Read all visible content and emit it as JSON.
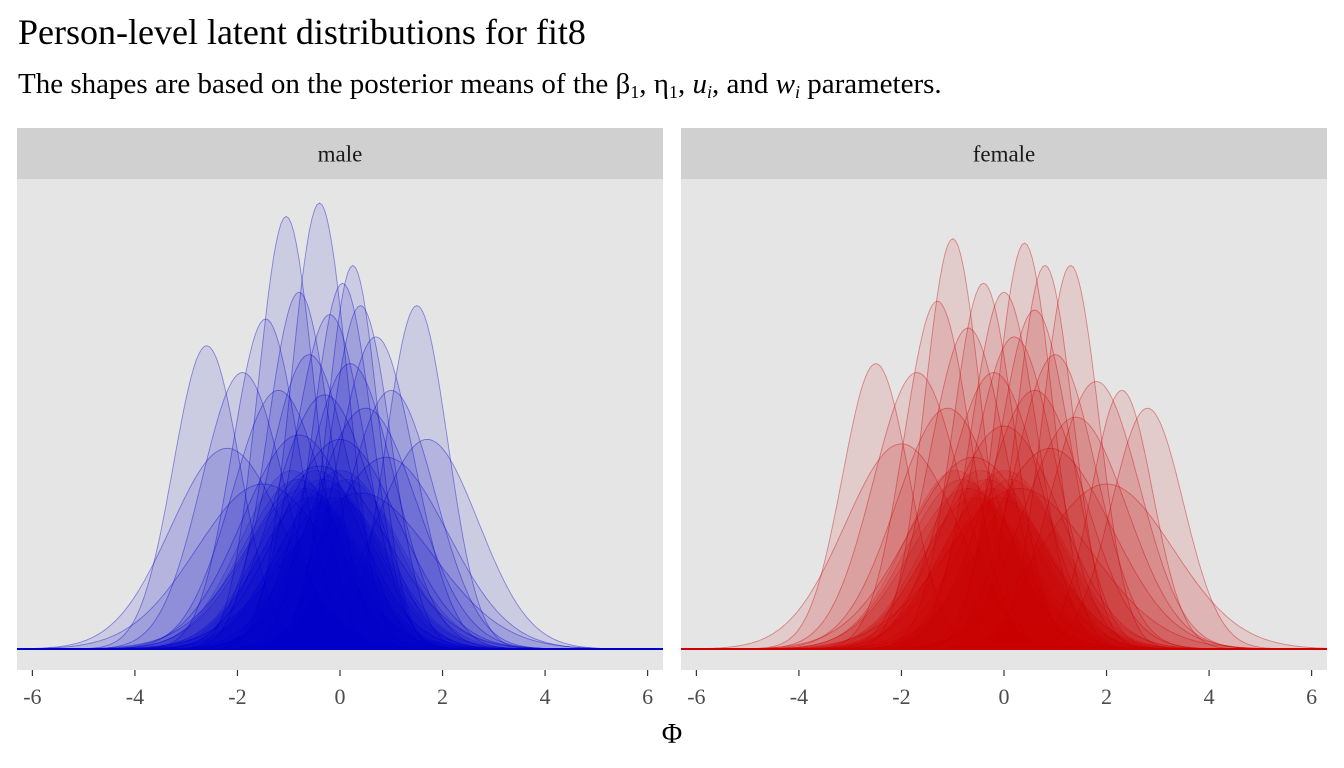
{
  "title": "Person-level latent distributions for fit8",
  "subtitle": {
    "prefix": "The shapes are based on the posterior means of the ",
    "beta": "β",
    "beta_sub": "1",
    "sep1": ", ",
    "eta": "η",
    "eta_sub": "1",
    "sep2": ", ",
    "u": "u",
    "u_sub": "i",
    "sep3": ", and ",
    "w": "w",
    "w_sub": "i",
    "suffix": " parameters."
  },
  "chart_data": {
    "type": "area",
    "xlabel": "Φ",
    "ylabel": "",
    "xlim": [
      -6.3,
      6.3
    ],
    "ylim": [
      0,
      1
    ],
    "x_ticks": [
      "-6",
      "-4",
      "-2",
      "0",
      "2",
      "4",
      "6"
    ],
    "x_tick_values": [
      -6,
      -4,
      -2,
      0,
      2,
      4,
      6
    ],
    "grid": false,
    "panel_background": "#e5e5e5",
    "strip_background": "#d0d0d0",
    "panels": [
      {
        "label": "male",
        "color": "#0000cc",
        "curves": [
          {
            "mean": -0.4,
            "sd": 0.55,
            "peak": 1.0
          },
          {
            "mean": -1.05,
            "sd": 0.55,
            "peak": 0.97
          },
          {
            "mean": 0.25,
            "sd": 0.5,
            "peak": 0.86
          },
          {
            "mean": -0.8,
            "sd": 0.62,
            "peak": 0.8
          },
          {
            "mean": 0.05,
            "sd": 0.58,
            "peak": 0.82
          },
          {
            "mean": 0.4,
            "sd": 0.6,
            "peak": 0.77
          },
          {
            "mean": 1.5,
            "sd": 0.6,
            "peak": 0.77
          },
          {
            "mean": -1.45,
            "sd": 0.65,
            "peak": 0.74
          },
          {
            "mean": -2.6,
            "sd": 0.65,
            "peak": 0.68
          },
          {
            "mean": -0.2,
            "sd": 0.7,
            "peak": 0.75
          },
          {
            "mean": 0.7,
            "sd": 0.75,
            "peak": 0.7
          },
          {
            "mean": -1.9,
            "sd": 0.8,
            "peak": 0.62
          },
          {
            "mean": -0.6,
            "sd": 0.8,
            "peak": 0.66
          },
          {
            "mean": 0.2,
            "sd": 0.85,
            "peak": 0.64
          },
          {
            "mean": 1.0,
            "sd": 0.85,
            "peak": 0.58
          },
          {
            "mean": -1.2,
            "sd": 0.9,
            "peak": 0.58
          },
          {
            "mean": -0.3,
            "sd": 0.95,
            "peak": 0.57
          },
          {
            "mean": 0.5,
            "sd": 1.0,
            "peak": 0.54
          },
          {
            "mean": 1.7,
            "sd": 1.0,
            "peak": 0.47
          },
          {
            "mean": -2.2,
            "sd": 1.1,
            "peak": 0.45
          },
          {
            "mean": -0.8,
            "sd": 1.1,
            "peak": 0.48
          },
          {
            "mean": 0.0,
            "sd": 1.15,
            "peak": 0.47
          },
          {
            "mean": 0.9,
            "sd": 1.2,
            "peak": 0.43
          },
          {
            "mean": -0.4,
            "sd": 1.3,
            "peak": 0.41
          },
          {
            "mean": -1.5,
            "sd": 1.3,
            "peak": 0.37
          },
          {
            "mean": 0.4,
            "sd": 1.4,
            "peak": 0.35
          }
        ]
      },
      {
        "label": "female",
        "color": "#cc0000",
        "curves": [
          {
            "mean": -1.0,
            "sd": 0.55,
            "peak": 0.92
          },
          {
            "mean": 0.4,
            "sd": 0.55,
            "peak": 0.91
          },
          {
            "mean": 0.8,
            "sd": 0.55,
            "peak": 0.86
          },
          {
            "mean": 1.3,
            "sd": 0.55,
            "peak": 0.86
          },
          {
            "mean": -0.4,
            "sd": 0.6,
            "peak": 0.82
          },
          {
            "mean": 0.0,
            "sd": 0.65,
            "peak": 0.8
          },
          {
            "mean": -1.3,
            "sd": 0.65,
            "peak": 0.78
          },
          {
            "mean": 0.6,
            "sd": 0.7,
            "peak": 0.76
          },
          {
            "mean": -2.5,
            "sd": 0.65,
            "peak": 0.64
          },
          {
            "mean": 2.3,
            "sd": 0.6,
            "peak": 0.58
          },
          {
            "mean": 2.8,
            "sd": 0.7,
            "peak": 0.54
          },
          {
            "mean": -0.7,
            "sd": 0.75,
            "peak": 0.72
          },
          {
            "mean": 0.2,
            "sd": 0.8,
            "peak": 0.7
          },
          {
            "mean": 1.0,
            "sd": 0.8,
            "peak": 0.66
          },
          {
            "mean": -1.7,
            "sd": 0.85,
            "peak": 0.62
          },
          {
            "mean": 1.8,
            "sd": 0.85,
            "peak": 0.6
          },
          {
            "mean": -0.2,
            "sd": 0.9,
            "peak": 0.62
          },
          {
            "mean": 0.6,
            "sd": 0.95,
            "peak": 0.58
          },
          {
            "mean": -1.1,
            "sd": 1.0,
            "peak": 0.54
          },
          {
            "mean": 1.4,
            "sd": 1.0,
            "peak": 0.52
          },
          {
            "mean": -2.0,
            "sd": 1.1,
            "peak": 0.46
          },
          {
            "mean": 0.0,
            "sd": 1.1,
            "peak": 0.5
          },
          {
            "mean": 0.9,
            "sd": 1.2,
            "peak": 0.45
          },
          {
            "mean": -0.6,
            "sd": 1.25,
            "peak": 0.43
          },
          {
            "mean": 2.0,
            "sd": 1.3,
            "peak": 0.37
          },
          {
            "mean": 0.3,
            "sd": 1.4,
            "peak": 0.36
          }
        ]
      }
    ]
  }
}
